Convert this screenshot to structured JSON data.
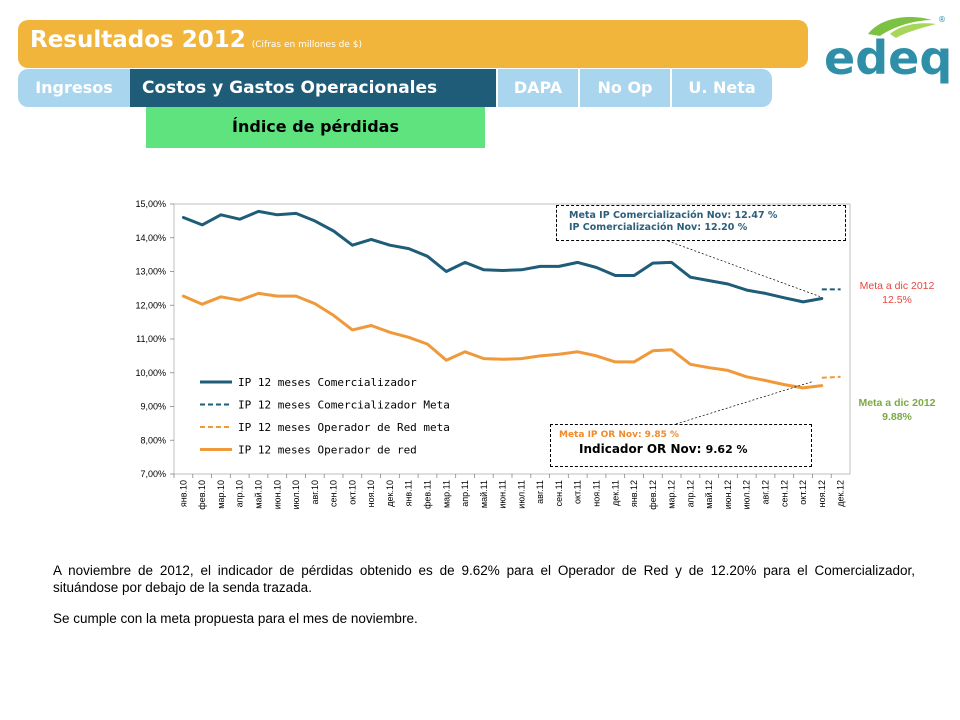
{
  "header": {
    "title": "Resultados 2012",
    "subtitle": "(Cifras en millones de $)"
  },
  "tabs": {
    "ingresos": "Ingresos",
    "costos": "Costos y Gastos Operacionales",
    "dapa": "DAPA",
    "noop": "No Op",
    "uneta": "U. Neta"
  },
  "subtab": "Índice de pérdidas",
  "logo": {
    "text": "edeq",
    "registered": "®"
  },
  "annotations": {
    "com_line1": "Meta IP Comercialización Nov:  12.47 %",
    "com_line2": "IP Comercialización Nov: 12.20 %",
    "or_line1": "Meta IP OR Nov:  9.85 %",
    "or_line2_label": "Indicador OR Nov:",
    "or_line2_value": "9.62 %",
    "meta_com_line1": "Meta a dic 2012",
    "meta_com_line2": "12.5%",
    "meta_or_line1": "Meta a dic 2012",
    "meta_or_line2": "9.88%"
  },
  "paragraph": {
    "p1": "A noviembre de 2012, el indicador de pérdidas obtenido es de 9.62%  para el Operador de Red y de 12.20% para el Comercializador, situándose por debajo de la senda trazada.",
    "p2": "Se cumple con la meta propuesta para el mes de noviembre."
  },
  "colors": {
    "comercializador": "#1e5c78",
    "operador": "#f0993a",
    "header": "#f2b53b",
    "tab_active": "#1e5c78",
    "tab_inactive": "#a9d6ee",
    "subtab": "#5fe37e",
    "logo": "#2f8fa8"
  },
  "chart_data": {
    "type": "line",
    "categories": [
      "янв.10",
      "фев.10",
      "мар.10",
      "апр.10",
      "май.10",
      "июн.10",
      "июл.10",
      "авг.10",
      "сен.10",
      "окт.10",
      "ноя.10",
      "дек.10",
      "янв.11",
      "фев.11",
      "мар.11",
      "апр.11",
      "май.11",
      "июн.11",
      "июл.11",
      "авг.11",
      "сен.11",
      "окт.11",
      "ноя.11",
      "дек.11",
      "янв.12",
      "фев.12",
      "мар.12",
      "апр.12",
      "май.12",
      "июн.12",
      "июл.12",
      "авг.12",
      "сен.12",
      "окт.12",
      "ноя.12",
      "дек.12"
    ],
    "y_ticks": [
      "7,00%",
      "8,00%",
      "9,00%",
      "10,00%",
      "11,00%",
      "12,00%",
      "13,00%",
      "14,00%",
      "15,00%"
    ],
    "ylim": [
      7,
      15
    ],
    "series": [
      {
        "name": "IP  12 meses Comercializador",
        "style": "solid",
        "values": [
          14.6,
          14.38,
          14.68,
          14.55,
          14.78,
          14.68,
          14.72,
          14.5,
          14.2,
          13.78,
          13.95,
          13.78,
          13.68,
          13.45,
          13.0,
          13.27,
          13.05,
          13.03,
          13.05,
          13.15,
          13.15,
          13.27,
          13.12,
          12.88,
          12.88,
          13.25,
          13.27,
          12.83,
          12.73,
          12.63,
          12.45,
          12.35,
          12.22,
          12.1,
          12.2,
          null
        ]
      },
      {
        "name": "IP 12 meses Comercializador Meta",
        "style": "dashed",
        "values": [
          null,
          null,
          null,
          null,
          null,
          null,
          null,
          null,
          null,
          null,
          null,
          null,
          null,
          null,
          null,
          null,
          null,
          null,
          null,
          null,
          null,
          null,
          null,
          null,
          null,
          null,
          null,
          null,
          null,
          null,
          null,
          null,
          null,
          null,
          12.47,
          12.47
        ]
      },
      {
        "name": "IP  12 meses Operador de Red  meta",
        "style": "dashed",
        "values": [
          null,
          null,
          null,
          null,
          null,
          null,
          null,
          null,
          null,
          null,
          null,
          null,
          null,
          null,
          null,
          null,
          null,
          null,
          null,
          null,
          null,
          null,
          null,
          null,
          null,
          null,
          null,
          null,
          null,
          null,
          null,
          null,
          null,
          null,
          9.85,
          9.88
        ]
      },
      {
        "name": "IP 12 meses Operador de red",
        "style": "solid",
        "values": [
          12.27,
          12.03,
          12.25,
          12.15,
          12.35,
          12.27,
          12.27,
          12.05,
          11.7,
          11.27,
          11.4,
          11.2,
          11.05,
          10.85,
          10.37,
          10.62,
          10.42,
          10.4,
          10.42,
          10.5,
          10.55,
          10.62,
          10.5,
          10.32,
          10.32,
          10.65,
          10.68,
          10.25,
          10.15,
          10.07,
          9.88,
          9.77,
          9.65,
          9.55,
          9.62,
          null
        ]
      }
    ]
  }
}
